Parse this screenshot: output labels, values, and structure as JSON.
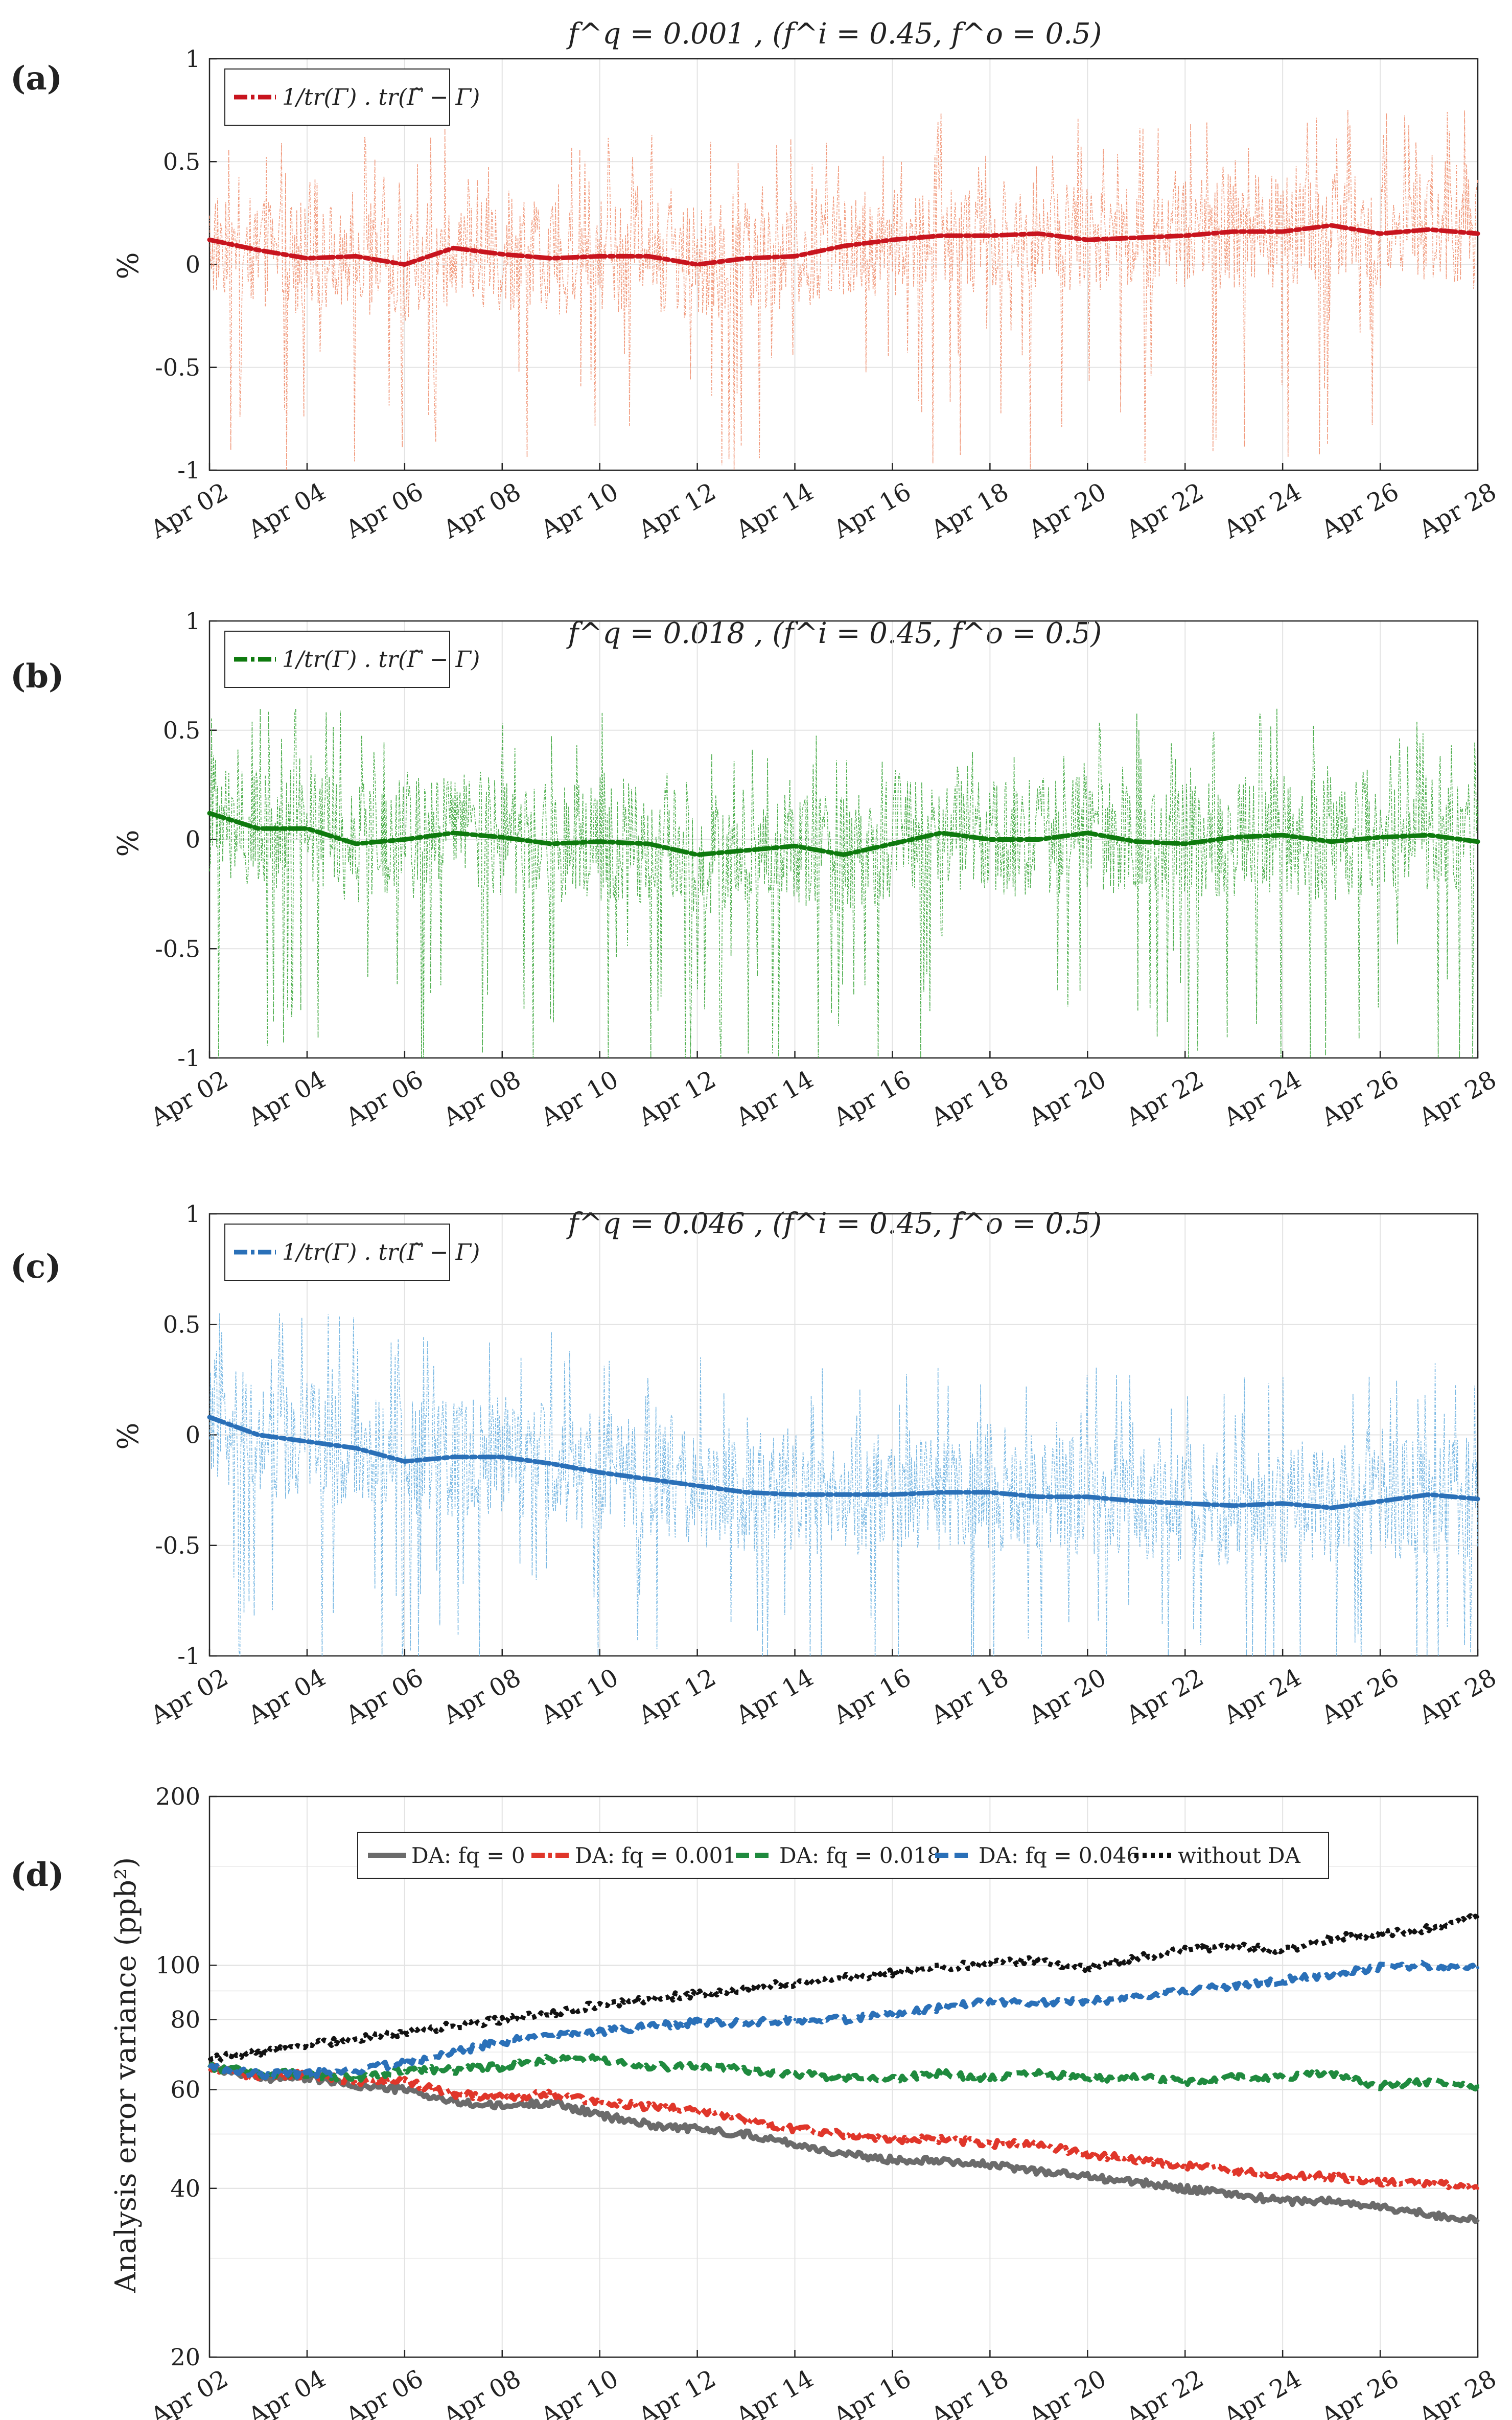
{
  "figure": {
    "dates": [
      "Apr 02",
      "Apr 04",
      "Apr 06",
      "Apr 08",
      "Apr 10",
      "Apr 12",
      "Apr 14",
      "Apr 16",
      "Apr 18",
      "Apr 20",
      "Apr 22",
      "Apr 24",
      "Apr 26",
      "Apr 28"
    ]
  },
  "chart_data": [
    {
      "panel": "(a)",
      "type": "line",
      "title": "f^q = 0.001 , (f^i = 0.45, f^o = 0.5)",
      "ylabel": "%",
      "xlabel": "",
      "ylim": [
        -1,
        1
      ],
      "yticks": [
        "1",
        "0.5",
        "0",
        "-0.5",
        "-1"
      ],
      "legend": "1/tr(Γ) . tr(Γ̃ − Γ)",
      "legend_location": "top-left",
      "colors": {
        "main": "#c8141e",
        "light": "#f09070"
      },
      "x": [
        2,
        3,
        4,
        5,
        6,
        7,
        8,
        9,
        10,
        11,
        12,
        13,
        14,
        15,
        16,
        17,
        18,
        19,
        20,
        21,
        22,
        23,
        24,
        25,
        26,
        27,
        28
      ],
      "series": [
        {
          "name": "smoothed trend",
          "values": [
            0.12,
            0.07,
            0.03,
            0.04,
            0.0,
            0.08,
            0.05,
            0.03,
            0.04,
            0.04,
            0.0,
            0.03,
            0.04,
            0.09,
            0.12,
            0.14,
            0.14,
            0.15,
            0.12,
            0.13,
            0.14,
            0.16,
            0.16,
            0.19,
            0.15,
            0.17,
            0.15
          ]
        },
        {
          "name": "raw relative trace difference",
          "style": "thin dash-dot",
          "amplitude": {
            "high": 0.85,
            "low": -1.0
          }
        }
      ]
    },
    {
      "panel": "(b)",
      "type": "line",
      "title": "f^q = 0.018 , (f^i = 0.45, f^o = 0.5)",
      "ylabel": "%",
      "xlabel": "",
      "ylim": [
        -1,
        1
      ],
      "yticks": [
        "1",
        "0.5",
        "0",
        "-0.5",
        "-1"
      ],
      "legend": "1/tr(Γ) . tr(Γ̃ − Γ)",
      "legend_location": "top-left",
      "colors": {
        "main": "#0e7a0e",
        "light": "#3aa53a"
      },
      "x": [
        2,
        3,
        4,
        5,
        6,
        7,
        8,
        9,
        10,
        11,
        12,
        13,
        14,
        15,
        16,
        17,
        18,
        19,
        20,
        21,
        22,
        23,
        24,
        25,
        26,
        27,
        28
      ],
      "series": [
        {
          "name": "smoothed trend",
          "values": [
            0.12,
            0.05,
            0.05,
            -0.02,
            0.0,
            0.03,
            0.01,
            -0.02,
            -0.01,
            -0.02,
            -0.07,
            -0.05,
            -0.03,
            -0.07,
            -0.02,
            0.03,
            0.0,
            0.0,
            0.03,
            -0.01,
            -0.02,
            0.01,
            0.02,
            -0.01,
            0.01,
            0.02,
            -0.01
          ]
        },
        {
          "name": "raw relative trace difference",
          "style": "thin dash-dot",
          "amplitude": {
            "high": 0.6,
            "low": -1.0
          }
        }
      ]
    },
    {
      "panel": "(c)",
      "type": "line",
      "title": "f^q = 0.046 , (f^i = 0.45, f^o = 0.5)",
      "ylabel": "%",
      "xlabel": "",
      "ylim": [
        -1,
        1
      ],
      "yticks": [
        "1",
        "0.5",
        "0",
        "-0.5",
        "-1"
      ],
      "legend": "1/tr(Γ) . tr(Γ̃ − Γ)",
      "legend_location": "top-left",
      "colors": {
        "main": "#2a70b8",
        "light": "#6ab0e0"
      },
      "x": [
        2,
        3,
        4,
        5,
        6,
        7,
        8,
        9,
        10,
        11,
        12,
        13,
        14,
        15,
        16,
        17,
        18,
        19,
        20,
        21,
        22,
        23,
        24,
        25,
        26,
        27,
        28
      ],
      "series": [
        {
          "name": "smoothed trend",
          "values": [
            0.08,
            0.0,
            -0.03,
            -0.06,
            -0.12,
            -0.1,
            -0.1,
            -0.13,
            -0.17,
            -0.2,
            -0.23,
            -0.26,
            -0.27,
            -0.27,
            -0.27,
            -0.26,
            -0.26,
            -0.28,
            -0.28,
            -0.3,
            -0.31,
            -0.32,
            -0.31,
            -0.33,
            -0.3,
            -0.27,
            -0.29
          ]
        },
        {
          "name": "raw relative trace difference",
          "style": "thin dash-dot",
          "amplitude": {
            "high": 0.55,
            "low": -1.0
          }
        }
      ]
    },
    {
      "panel": "(d)",
      "type": "line",
      "title": "",
      "ylabel": "Analysis error variance (ppb²)",
      "xlabel": "",
      "yscale": "log",
      "ylim": [
        20,
        200
      ],
      "yticks": [
        "200",
        "100",
        "80",
        "60",
        "40",
        "20"
      ],
      "legend_location": "top-center",
      "x": [
        2,
        3,
        4,
        5,
        6,
        7,
        8,
        9,
        10,
        11,
        12,
        13,
        14,
        15,
        16,
        17,
        18,
        19,
        20,
        21,
        22,
        23,
        24,
        25,
        26,
        27,
        28
      ],
      "series": [
        {
          "name": "DA: f_q = 0",
          "label": "DA: fq = 0",
          "color": "#6b6b6b",
          "style": "solid",
          "values": [
            66,
            63,
            63,
            61,
            60,
            57,
            56,
            57,
            54,
            52,
            51,
            50,
            48,
            46,
            45,
            45,
            44,
            43,
            42,
            41,
            40,
            39,
            38,
            38,
            37,
            36,
            35
          ]
        },
        {
          "name": "DA: f_q = 0.001",
          "label": "DA: fq = 0.001",
          "color": "#e0362a",
          "style": "dash-dot",
          "values": [
            66,
            63,
            64,
            62,
            62,
            59,
            58,
            59,
            57,
            56,
            55,
            53,
            51,
            50,
            49,
            49,
            48,
            48,
            46,
            45,
            44,
            43,
            42,
            42,
            41,
            41,
            40
          ]
        },
        {
          "name": "DA: f_q = 0.018",
          "label": "DA: fq = 0.018",
          "color": "#1f8a3e",
          "style": "dashed",
          "values": [
            66,
            64,
            64,
            63,
            65,
            65,
            66,
            68,
            68,
            66,
            66,
            65,
            64,
            63,
            63,
            64,
            63,
            64,
            63,
            63,
            62,
            63,
            63,
            64,
            61,
            62,
            61
          ]
        },
        {
          "name": "DA: f_q = 0.046",
          "label": "DA: fq = 0.046",
          "color": "#2a70b8",
          "style": "dashed",
          "values": [
            66,
            64,
            64,
            65,
            67,
            70,
            73,
            75,
            76,
            78,
            79,
            79,
            80,
            80,
            82,
            84,
            86,
            86,
            86,
            88,
            90,
            92,
            94,
            96,
            99,
            100,
            99
          ]
        },
        {
          "name": "without DA",
          "label": "without DA",
          "color": "#111111",
          "style": "dotted",
          "values": [
            68,
            70,
            72,
            74,
            76,
            78,
            80,
            82,
            85,
            87,
            89,
            91,
            93,
            95,
            97,
            99,
            101,
            102,
            99,
            103,
            107,
            108,
            106,
            112,
            114,
            116,
            122
          ]
        }
      ]
    }
  ]
}
